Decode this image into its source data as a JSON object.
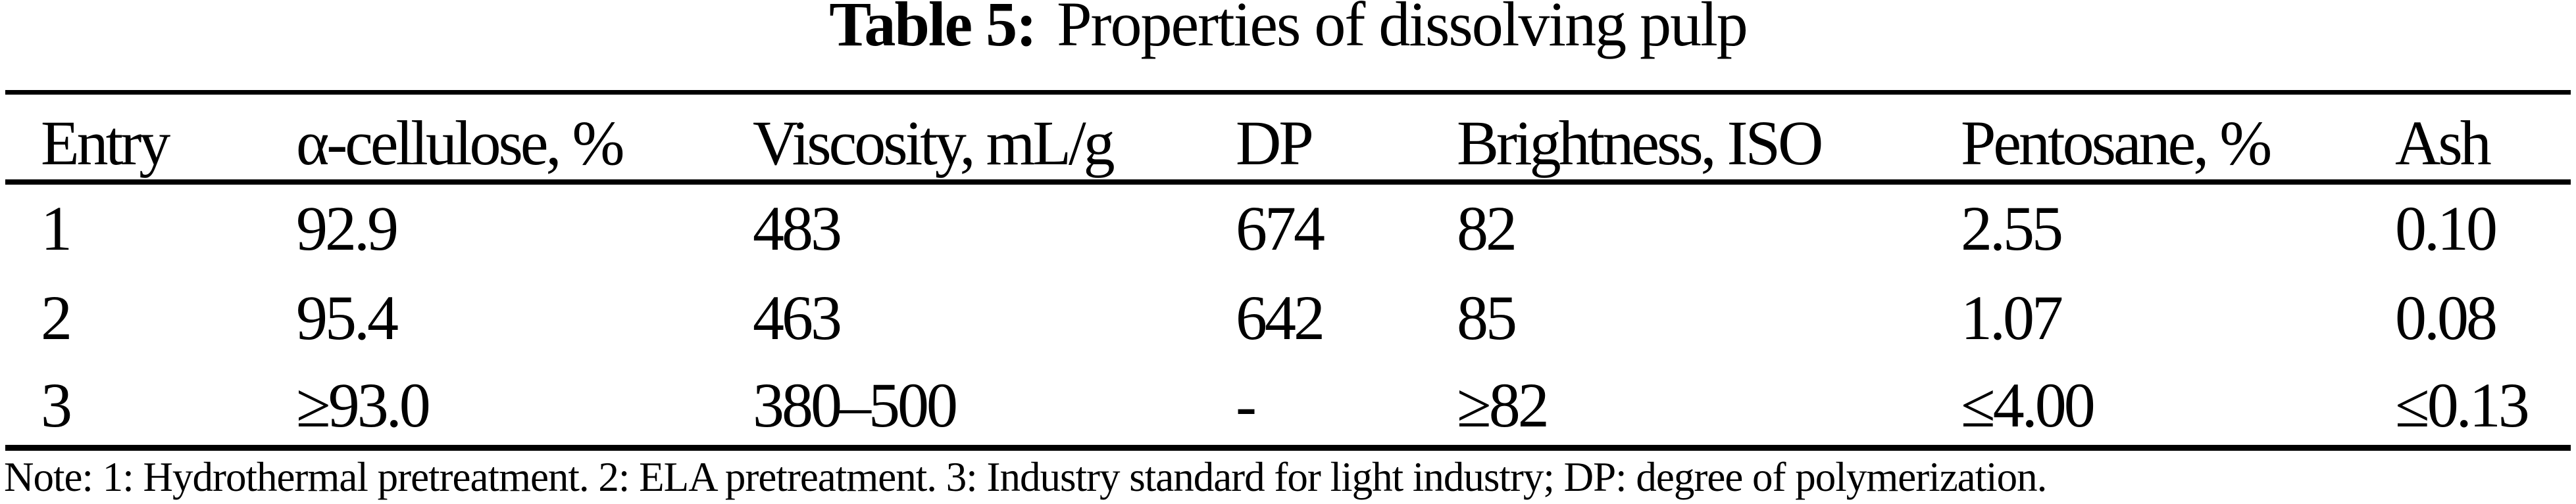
{
  "colors": {
    "background": "#ffffff",
    "text": "#000000",
    "rule": "#000000"
  },
  "title": {
    "label": "Table 5:",
    "text": "Properties of dissolving pulp"
  },
  "table": {
    "columns": [
      "Entry",
      "α-cellulose, %",
      "Viscosity, mL/g",
      "DP",
      "Brightness, ISO",
      "Pentosane, %",
      "Ash"
    ],
    "rows": [
      [
        "1",
        "92.9",
        "483",
        "674",
        "82",
        "2.55",
        "0.10"
      ],
      [
        "2",
        "95.4",
        "463",
        "642",
        "85",
        "1.07",
        "0.08"
      ],
      [
        "3",
        "≥93.0",
        "380–500",
        "-",
        "≥82",
        "≤4.00",
        "≤0.13"
      ]
    ]
  },
  "note": "Note: 1: Hydrothermal pretreatment. 2: ELA pretreatment. 3: Industry standard for light industry; DP: degree of polymerization."
}
